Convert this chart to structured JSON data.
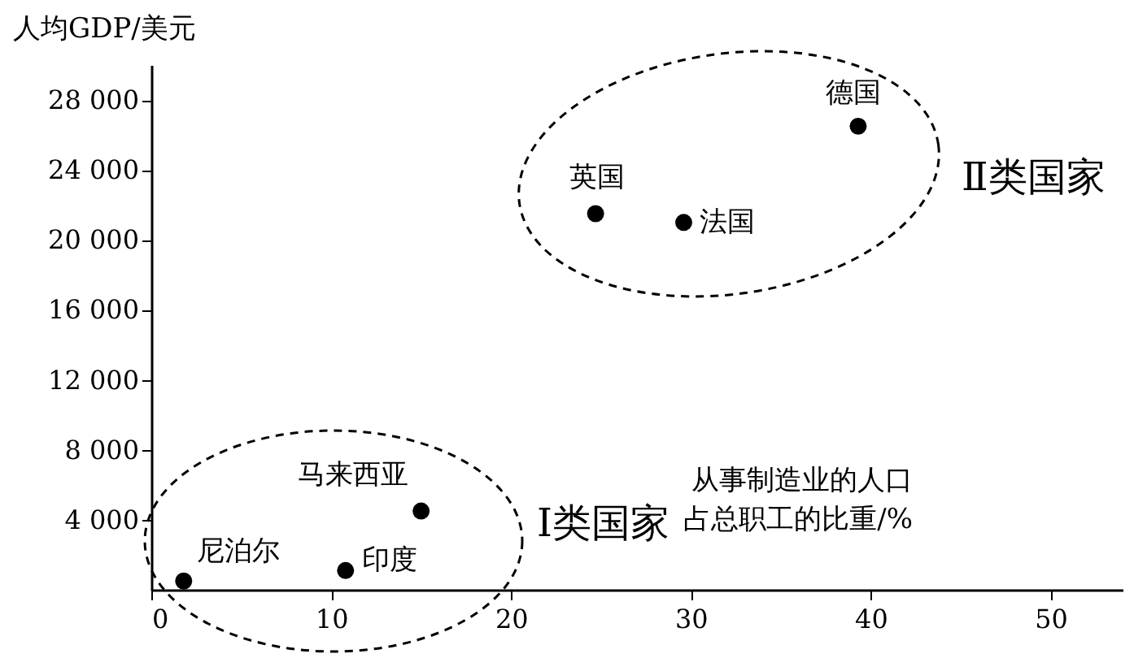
{
  "chart_data": {
    "type": "scatter",
    "ylabel": "人均GDP/美元",
    "xlabel": "从事制造业的人口占总职工的比重/%",
    "xlim": [
      0,
      54
    ],
    "xticks": [
      0,
      10,
      20,
      30,
      40,
      50
    ],
    "ylim": [
      0,
      30000
    ],
    "yticks": [
      {
        "value": 4000,
        "label": "4 000"
      },
      {
        "value": 8000,
        "label": "8 000"
      },
      {
        "value": 12000,
        "label": "12 000"
      },
      {
        "value": 16000,
        "label": "16 000"
      },
      {
        "value": 20000,
        "label": "20 000"
      },
      {
        "value": 24000,
        "label": "24 000"
      },
      {
        "value": 28000,
        "label": "28 000"
      }
    ],
    "series": [
      {
        "name": "尼泊尔",
        "color": "#000000",
        "x": [
          1.8
        ],
        "values": [
          500
        ]
      },
      {
        "name": "印度",
        "color": "#000000",
        "x": [
          10.8
        ],
        "values": [
          1100
        ]
      },
      {
        "name": "马来西亚",
        "color": "#000000",
        "x": [
          15
        ],
        "values": [
          4500
        ]
      },
      {
        "name": "英国",
        "color": "#000000",
        "x": [
          24.7
        ],
        "values": [
          21500
        ]
      },
      {
        "name": "法国",
        "color": "#000000",
        "x": [
          29.6
        ],
        "values": [
          21000
        ]
      },
      {
        "name": "德国",
        "color": "#000000",
        "x": [
          39.3
        ],
        "values": [
          26500
        ]
      }
    ],
    "annotations": [
      "Ⅰ类国家",
      "Ⅱ类国家"
    ],
    "marker": "circle",
    "legend": false,
    "grid": false
  }
}
